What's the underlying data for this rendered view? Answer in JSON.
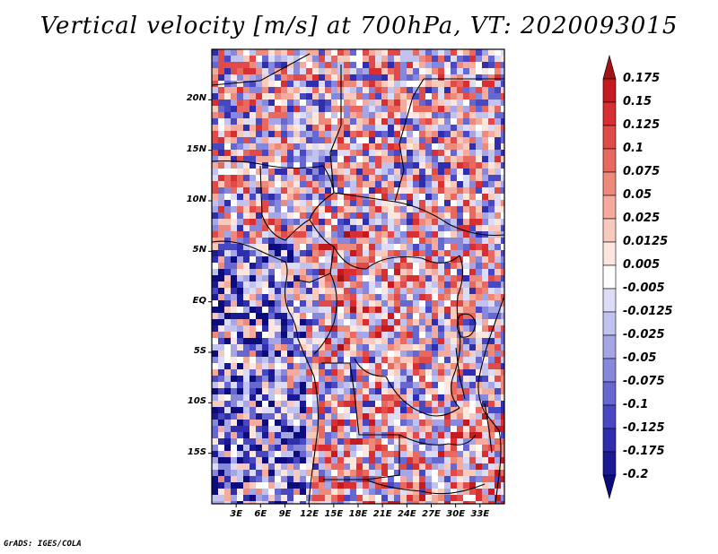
{
  "title": "Vertical velocity [m/s] at 700hPa, VT: 2020093015",
  "credit": "GrADS: IGES/COLA",
  "map": {
    "lon_range": [
      0,
      36
    ],
    "lat_range": [
      -20,
      25
    ],
    "lat_ticks": [
      {
        "value": 20,
        "label": "20N"
      },
      {
        "value": 15,
        "label": "15N"
      },
      {
        "value": 10,
        "label": "10N"
      },
      {
        "value": 5,
        "label": "5N"
      },
      {
        "value": 0,
        "label": "EQ"
      },
      {
        "value": -5,
        "label": "5S"
      },
      {
        "value": -10,
        "label": "10S"
      },
      {
        "value": -15,
        "label": "15S"
      }
    ],
    "lon_ticks": [
      {
        "value": 3,
        "label": "3E"
      },
      {
        "value": 6,
        "label": "6E"
      },
      {
        "value": 9,
        "label": "9E"
      },
      {
        "value": 12,
        "label": "12E"
      },
      {
        "value": 15,
        "label": "15E"
      },
      {
        "value": 18,
        "label": "18E"
      },
      {
        "value": 21,
        "label": "21E"
      },
      {
        "value": 24,
        "label": "24E"
      },
      {
        "value": 27,
        "label": "27E"
      },
      {
        "value": 30,
        "label": "30E"
      },
      {
        "value": 33,
        "label": "33E"
      }
    ]
  },
  "colorbar": {
    "labels": [
      "0.175",
      "0.15",
      "0.125",
      "0.1",
      "0.075",
      "0.05",
      "0.025",
      "0.0125",
      "0.005",
      "-0.005",
      "-0.0125",
      "-0.025",
      "-0.05",
      "-0.075",
      "-0.1",
      "-0.125",
      "-0.175",
      "-0.2"
    ],
    "colors": [
      "#a01418",
      "#c41a20",
      "#d82f32",
      "#e04a48",
      "#e8695f",
      "#ee8a7c",
      "#f4aa9c",
      "#f8cabd",
      "#fce6de",
      "#ffffff",
      "#dcdcf6",
      "#c2c2ef",
      "#a6a6e6",
      "#8787dc",
      "#6767d0",
      "#4848c2",
      "#2e2eae",
      "#1a1a94",
      "#0c0c7c"
    ]
  }
}
